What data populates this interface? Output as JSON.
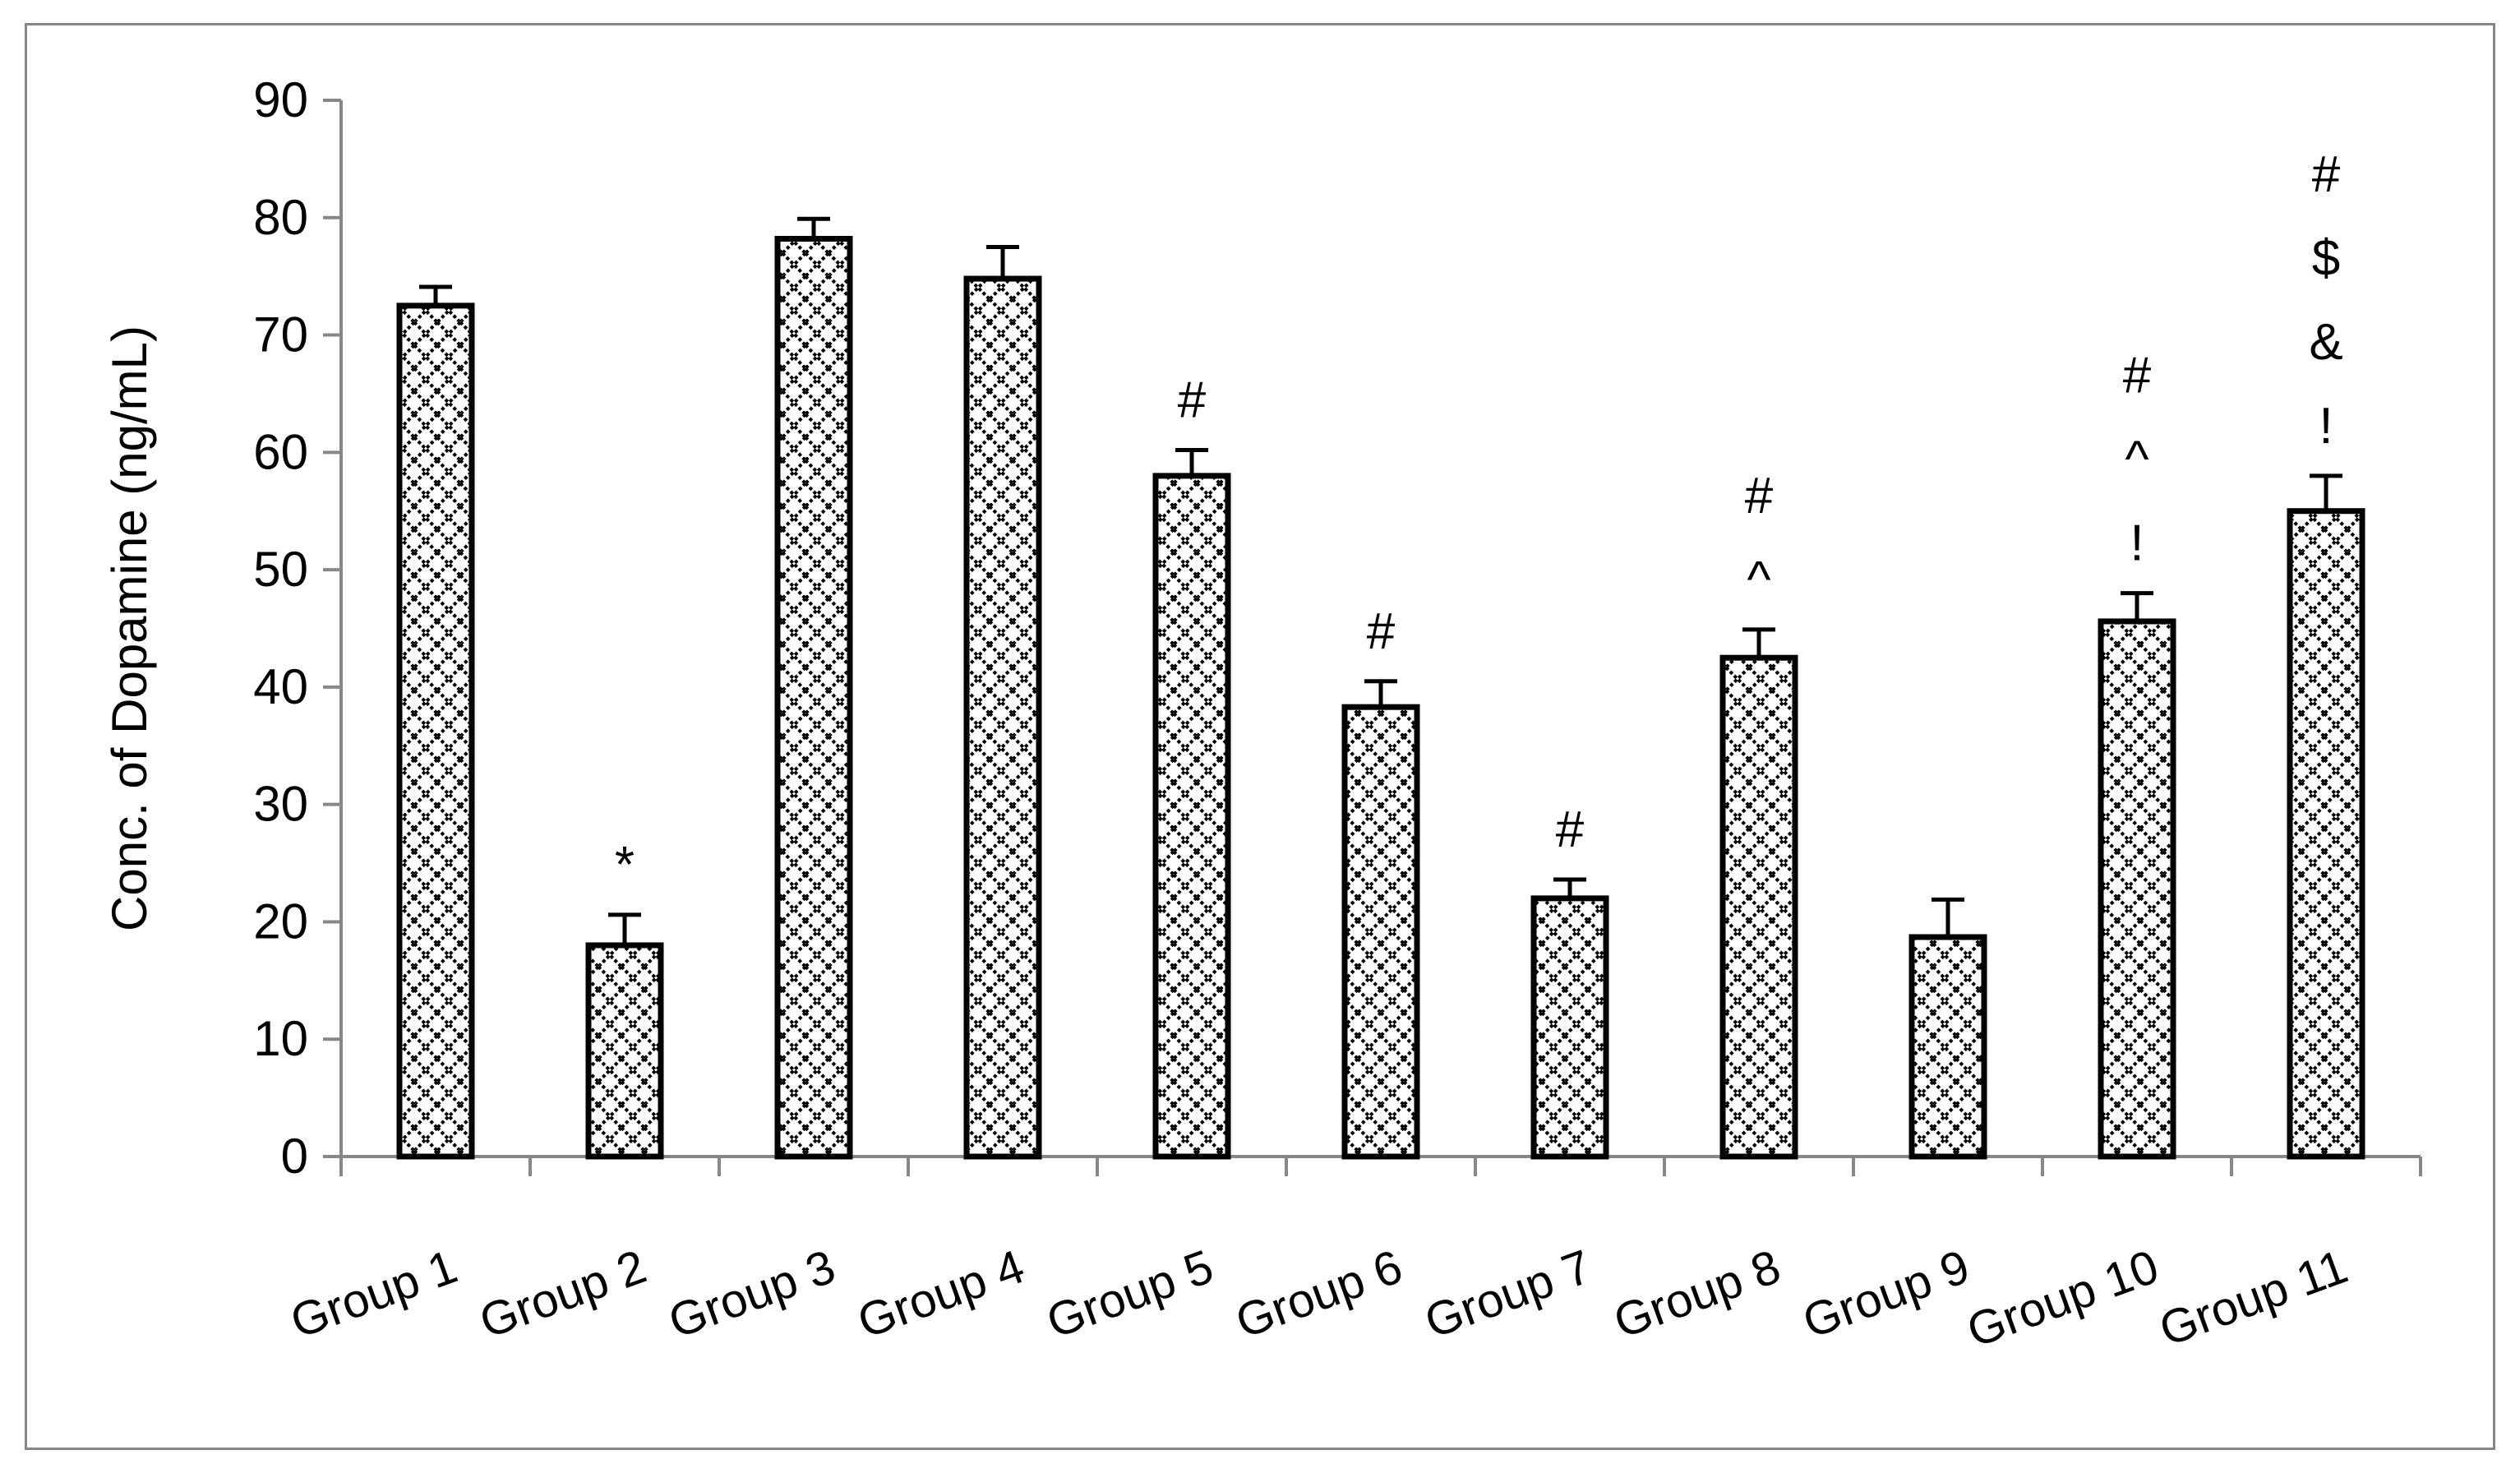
{
  "chart_data": {
    "type": "bar",
    "title": "",
    "xlabel": "",
    "ylabel": "Conc. of Dopamine (ng/mL)",
    "ylim": [
      0,
      90
    ],
    "yticks": [
      0,
      10,
      20,
      30,
      40,
      50,
      60,
      70,
      80,
      90
    ],
    "grid": false,
    "legend": "none",
    "categories": [
      "Group 1",
      "Group 2",
      "Group 3",
      "Group 4",
      "Group 5",
      "Group 6",
      "Group 7",
      "Group 8",
      "Group 9",
      "Group 10",
      "Group 11"
    ],
    "values": [
      72.5,
      18,
      78.2,
      74.8,
      58,
      38.3,
      22,
      42.5,
      18.7,
      45.6,
      55
    ],
    "errors": [
      1.6,
      2.6,
      1.7,
      2.7,
      2.2,
      2.2,
      1.6,
      2.4,
      3.2,
      2.4,
      3
    ],
    "annotations": [
      [],
      [
        "*"
      ],
      [],
      [],
      [
        "#"
      ],
      [
        "#"
      ],
      [
        "#"
      ],
      [
        "#",
        "^"
      ],
      [],
      [
        "#",
        "^",
        "!"
      ],
      [
        "#",
        "$",
        "&",
        "!"
      ]
    ],
    "colors": {
      "bar_fill": "#ffffff",
      "bar_pattern": "#000000",
      "axis": "#878787",
      "frame": "#878787",
      "text": "#000000"
    }
  }
}
